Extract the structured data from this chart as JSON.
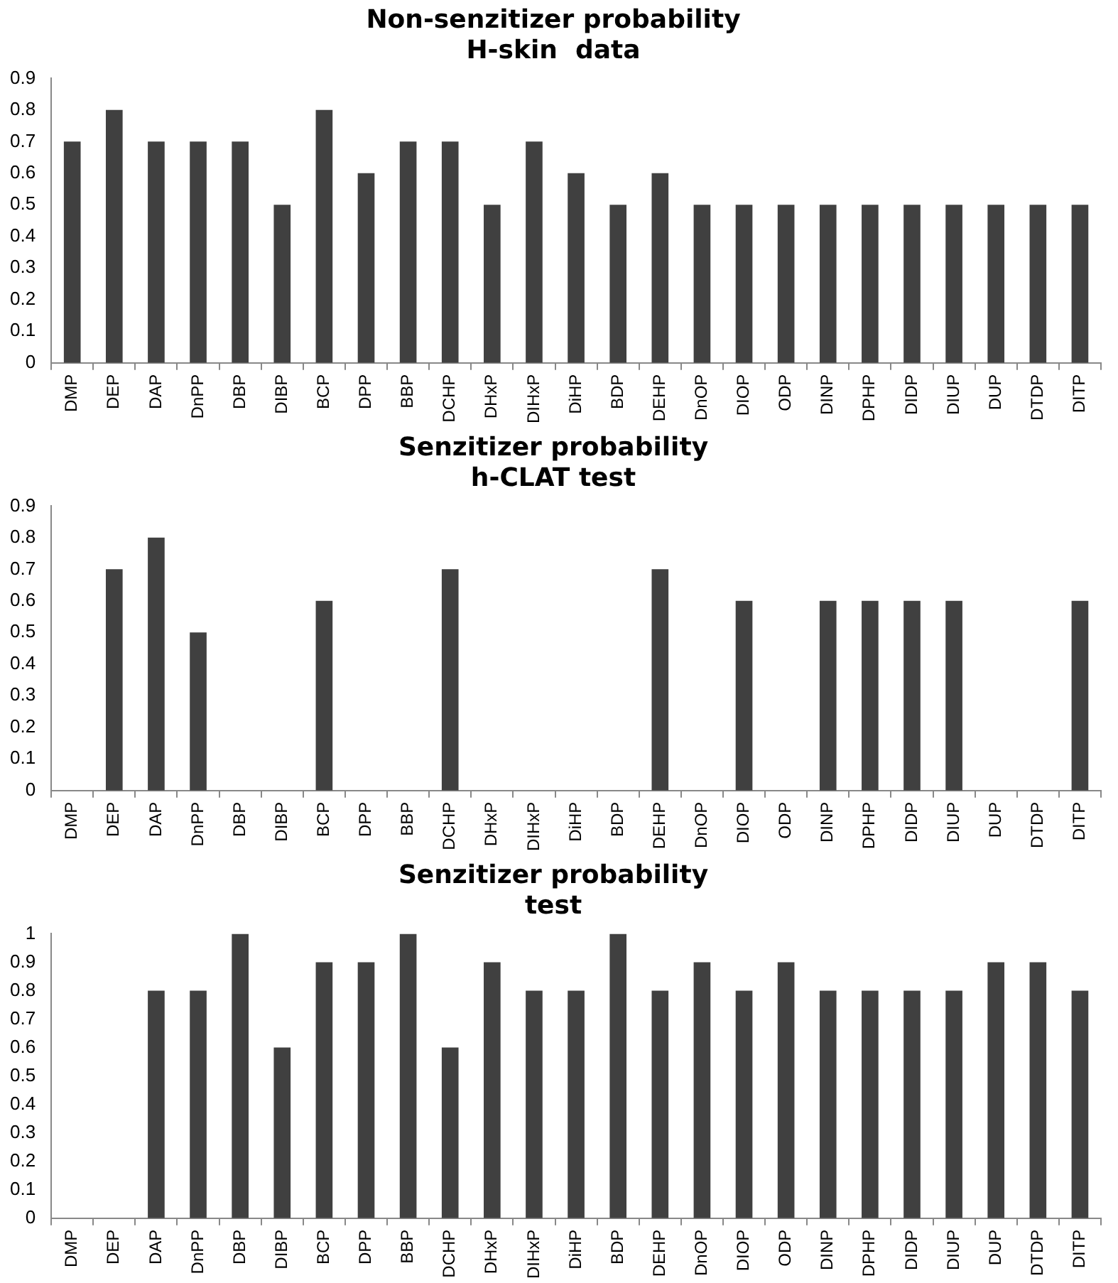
{
  "chart_data": [
    {
      "type": "bar",
      "title": "Non-senzitizer probability\nH-skin  data",
      "categories": [
        "DMP",
        "DEP",
        "DAP",
        "DnPP",
        "DBP",
        "DIBP",
        "BCP",
        "DPP",
        "BBP",
        "DCHP",
        "DHxP",
        "DIHxP",
        "DiHP",
        "BDP",
        "DEHP",
        "DnOP",
        "DIOP",
        "ODP",
        "DINP",
        "DPHP",
        "DIDP",
        "DIUP",
        "DUP",
        "DTDP",
        "DITP"
      ],
      "values": [
        0.7,
        0.8,
        0.7,
        0.7,
        0.7,
        0.5,
        0.8,
        0.6,
        0.7,
        0.7,
        0.5,
        0.7,
        0.6,
        0.5,
        0.6,
        0.5,
        0.5,
        0.5,
        0.5,
        0.5,
        0.5,
        0.5,
        0.5,
        0.5,
        0.5
      ],
      "color": "#404040",
      "ylim": [
        0,
        0.9
      ],
      "yticks": [
        0,
        0.1,
        0.2,
        0.3,
        0.4,
        0.5,
        0.6,
        0.7,
        0.8,
        0.9
      ],
      "grid": false,
      "legend": false
    },
    {
      "type": "bar",
      "title": "Senzitizer probability\nh-CLAT test",
      "categories": [
        "DMP",
        "DEP",
        "DAP",
        "DnPP",
        "DBP",
        "DIBP",
        "BCP",
        "DPP",
        "BBP",
        "DCHP",
        "DHxP",
        "DIHxP",
        "DiHP",
        "BDP",
        "DEHP",
        "DnOP",
        "DIOP",
        "ODP",
        "DINP",
        "DPHP",
        "DIDP",
        "DIUP",
        "DUP",
        "DTDP",
        "DITP"
      ],
      "values": [
        0,
        0.7,
        0.8,
        0.5,
        0,
        0,
        0.6,
        0,
        0,
        0.7,
        0,
        0,
        0,
        0,
        0.7,
        0,
        0.6,
        0,
        0.6,
        0.6,
        0.6,
        0.6,
        0,
        0,
        0.6
      ],
      "color": "#404040",
      "ylim": [
        0,
        0.9
      ],
      "yticks": [
        0,
        0.1,
        0.2,
        0.3,
        0.4,
        0.5,
        0.6,
        0.7,
        0.8,
        0.9
      ],
      "grid": false,
      "legend": false
    },
    {
      "type": "bar",
      "title": "Senzitizer probability\ntest",
      "categories": [
        "DMP",
        "DEP",
        "DAP",
        "DnPP",
        "DBP",
        "DIBP",
        "BCP",
        "DPP",
        "BBP",
        "DCHP",
        "DHxP",
        "DIHxP",
        "DiHP",
        "BDP",
        "DEHP",
        "DnOP",
        "DIOP",
        "ODP",
        "DINP",
        "DPHP",
        "DIDP",
        "DIUP",
        "DUP",
        "DTDP",
        "DITP"
      ],
      "values": [
        0,
        0,
        0.8,
        0.8,
        1,
        0.6,
        0.9,
        0.9,
        1,
        0.6,
        0.9,
        0.8,
        0.8,
        1,
        0.8,
        0.9,
        0.8,
        0.9,
        0.8,
        0.8,
        0.8,
        0.8,
        0.9,
        0.9,
        0.8
      ],
      "color": "#404040",
      "ylim": [
        0,
        1
      ],
      "yticks": [
        0,
        0.1,
        0.2,
        0.3,
        0.4,
        0.5,
        0.6,
        0.7,
        0.8,
        0.9,
        1
      ],
      "grid": false,
      "legend": false
    }
  ]
}
